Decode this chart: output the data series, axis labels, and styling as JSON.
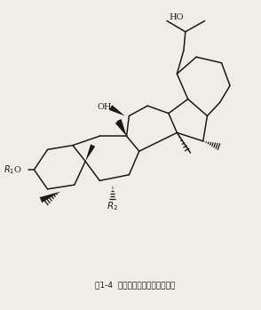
{
  "title": "图1-4  奥克梯隆型分子结构示意图",
  "bg_color": "#f0ede8",
  "line_color": "#1a1a1a",
  "line_width": 1.1,
  "figsize": [
    2.94,
    3.49
  ],
  "dpi": 100
}
